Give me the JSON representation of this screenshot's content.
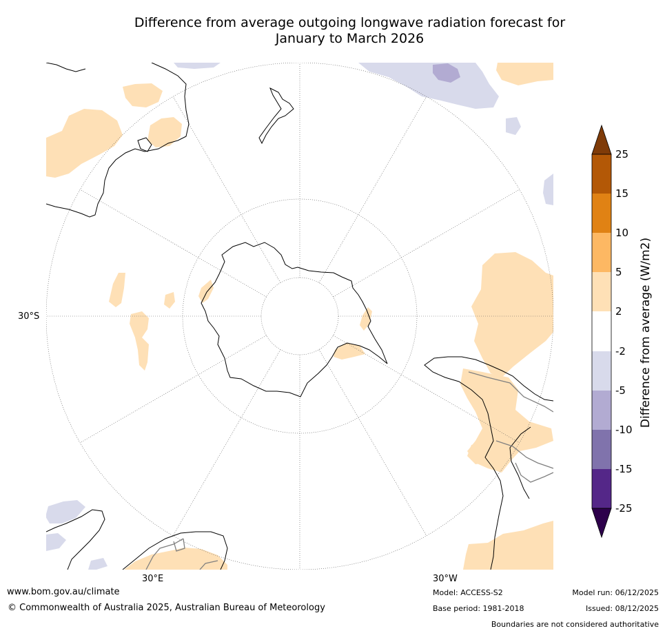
{
  "title": {
    "line1": "Difference from average outgoing longwave radiation forecast for",
    "line2": "January to March 2026"
  },
  "map": {
    "projection": "south-polar-stereographic",
    "labels": {
      "lat_30s": "30°S",
      "lon_30e": "30°E",
      "lon_30w": "30°W"
    }
  },
  "colorbar": {
    "title": "Difference from average (W/m2)",
    "ticks": [
      "25",
      "15",
      "10",
      "5",
      "2",
      "-2",
      "-5",
      "-10",
      "-15",
      "-25"
    ],
    "colors": {
      "over": "#7f3b08",
      "b15_25": "#b35806",
      "b10_15": "#e08214",
      "b5_10": "#fdb863",
      "b2_5": "#fee0b6",
      "neutral": "#ffffff",
      "bm2_m5": "#d8daeb",
      "bm5_m10": "#b2abd2",
      "bm10_m15": "#8073ac",
      "bm15_m25": "#542788",
      "under": "#2d004b"
    }
  },
  "footer": {
    "url": "www.bom.gov.au/climate",
    "copyright": "© Commonwealth of Australia 2025, Australian Bureau of Meteorology",
    "model": "Model: ACCESS-S2",
    "base_period": "Base period: 1981-2018",
    "model_run": "Model run: 06/12/2025",
    "issued": "Issued: 08/12/2025",
    "disclaimer": "Boundaries are not considered authoritative"
  }
}
